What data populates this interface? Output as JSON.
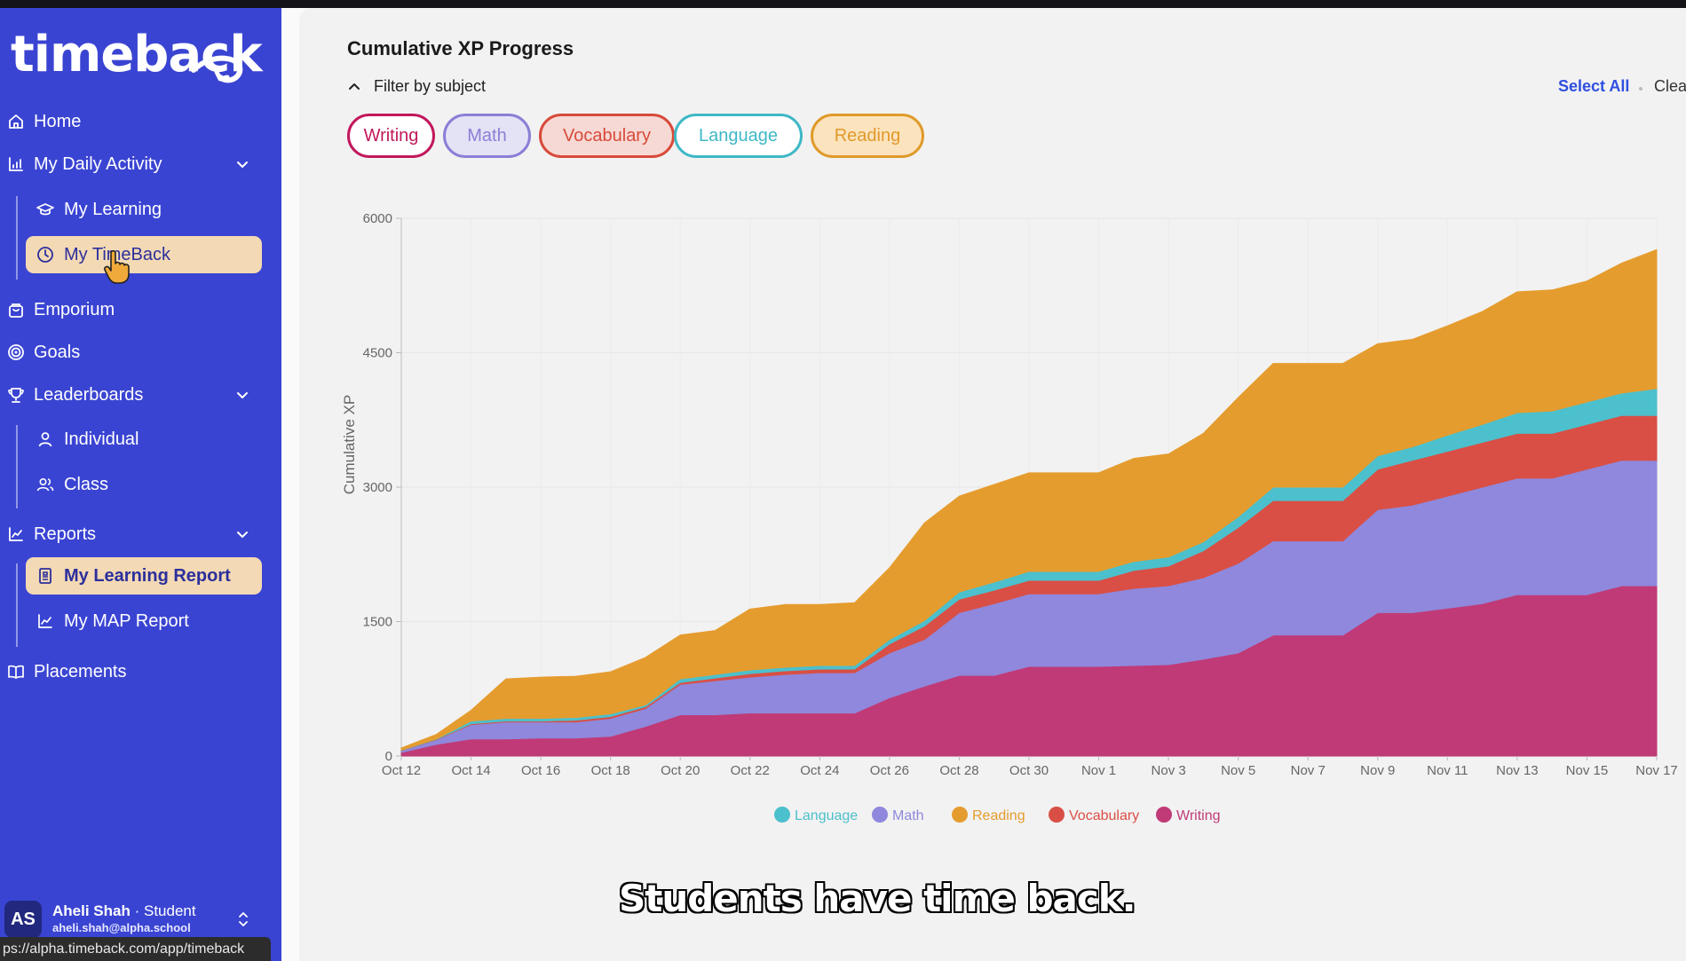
{
  "app": {
    "logo_text": "timeback"
  },
  "sidebar": {
    "items": [
      {
        "label": "Home",
        "icon": "home-icon"
      },
      {
        "label": "My Daily Activity",
        "icon": "activity-chart-icon",
        "expanded": true,
        "children": [
          {
            "label": "My Learning",
            "icon": "graduation-cap-icon"
          },
          {
            "label": "My TimeBack",
            "icon": "clock-icon",
            "active": true
          }
        ]
      },
      {
        "label": "Emporium",
        "icon": "shopping-bag-icon"
      },
      {
        "label": "Goals",
        "icon": "target-icon"
      },
      {
        "label": "Leaderboards",
        "icon": "trophy-icon",
        "expanded": true,
        "children": [
          {
            "label": "Individual",
            "icon": "user-icon"
          },
          {
            "label": "Class",
            "icon": "users-icon"
          }
        ]
      },
      {
        "label": "Reports",
        "icon": "reports-chart-icon",
        "expanded": true,
        "children": [
          {
            "label": "My Learning Report",
            "icon": "report-icon",
            "active": true
          },
          {
            "label": "My MAP Report",
            "icon": "line-chart-icon"
          }
        ]
      },
      {
        "label": "Placements",
        "icon": "book-open-icon"
      }
    ],
    "user": {
      "initials": "AS",
      "name": "Aheli Shah",
      "role": "· Student",
      "email": "aheli.shah@alpha.school"
    }
  },
  "status_url": "ps://alpha.timeback.com/app/timeback",
  "main": {
    "title": "Cumulative XP Progress",
    "filter_label": "Filter by subject",
    "select_all": "Select All",
    "clear": "Clear",
    "subject_pills": [
      {
        "label": "Writing",
        "color": "#c2185b",
        "bg": "#ffffff"
      },
      {
        "label": "Math",
        "color": "#8a7fd6",
        "bg": "#e4e2f5"
      },
      {
        "label": "Vocabulary",
        "color": "#d84a3a",
        "bg": "#f6d9d4"
      },
      {
        "label": "Language",
        "color": "#3fb8c6",
        "bg": "#ffffff"
      },
      {
        "label": "Reading",
        "color": "#e09a2a",
        "bg": "#fbe3bd"
      }
    ]
  },
  "caption": "Students have time back.",
  "chart_data": {
    "type": "area",
    "stacked": true,
    "title": "Cumulative XP Progress",
    "ylabel": "Cumulative XP",
    "xlabel": "",
    "ylim": [
      0,
      6000
    ],
    "yticks": [
      "0",
      "1500",
      "3000",
      "4500",
      "6000"
    ],
    "xticks": [
      "Oct 12",
      "Oct 14",
      "Oct 16",
      "Oct 18",
      "Oct 20",
      "Oct 22",
      "Oct 24",
      "Oct 26",
      "Oct 28",
      "Oct 30",
      "Nov 1",
      "Nov 3",
      "Nov 5",
      "Nov 7",
      "Nov 9",
      "Nov 11",
      "Nov 13",
      "Nov 15",
      "Nov 17"
    ],
    "x": [
      "Oct 12",
      "Oct 13",
      "Oct 14",
      "Oct 15",
      "Oct 16",
      "Oct 17",
      "Oct 18",
      "Oct 19",
      "Oct 20",
      "Oct 21",
      "Oct 22",
      "Oct 23",
      "Oct 24",
      "Oct 25",
      "Oct 26",
      "Oct 27",
      "Oct 28",
      "Oct 29",
      "Oct 30",
      "Oct 31",
      "Nov 1",
      "Nov 2",
      "Nov 3",
      "Nov 4",
      "Nov 5",
      "Nov 6",
      "Nov 7",
      "Nov 8",
      "Nov 9",
      "Nov 10",
      "Nov 11",
      "Nov 12",
      "Nov 13",
      "Nov 14",
      "Nov 15",
      "Nov 16",
      "Nov 17"
    ],
    "legend_position": "bottom",
    "series": [
      {
        "name": "Writing",
        "color": "#c03a77",
        "values": [
          40,
          130,
          190,
          190,
          200,
          200,
          220,
          330,
          460,
          460,
          480,
          480,
          480,
          480,
          650,
          780,
          900,
          900,
          1000,
          1000,
          1000,
          1010,
          1020,
          1080,
          1150,
          1350,
          1350,
          1350,
          1600,
          1600,
          1650,
          1700,
          1800,
          1800,
          1800,
          1900,
          1900
        ]
      },
      {
        "name": "Math",
        "color": "#8f88dc",
        "values": [
          20,
          50,
          160,
          190,
          180,
          180,
          200,
          200,
          340,
          380,
          400,
          430,
          450,
          450,
          500,
          520,
          700,
          800,
          810,
          810,
          810,
          860,
          880,
          910,
          1000,
          1050,
          1050,
          1050,
          1150,
          1200,
          1250,
          1300,
          1300,
          1300,
          1400,
          1400,
          1400
        ]
      },
      {
        "name": "Vocabulary",
        "color": "#d94f45",
        "values": [
          3,
          5,
          10,
          10,
          10,
          20,
          20,
          20,
          20,
          30,
          40,
          40,
          40,
          40,
          100,
          150,
          150,
          150,
          150,
          150,
          150,
          200,
          220,
          300,
          400,
          450,
          450,
          450,
          450,
          500,
          500,
          500,
          500,
          500,
          500,
          500,
          500
        ]
      },
      {
        "name": "Language",
        "color": "#4cc0cc",
        "values": [
          2,
          5,
          30,
          30,
          30,
          30,
          30,
          20,
          40,
          40,
          40,
          40,
          40,
          40,
          50,
          60,
          80,
          90,
          100,
          100,
          100,
          100,
          100,
          100,
          120,
          150,
          150,
          150,
          150,
          150,
          180,
          200,
          230,
          250,
          250,
          250,
          300
        ]
      },
      {
        "name": "Reading",
        "color": "#e59c2e",
        "values": [
          25,
          50,
          120,
          440,
          460,
          460,
          470,
          530,
          490,
          490,
          680,
          700,
          680,
          700,
          800,
          1090,
          1070,
          1090,
          1100,
          1100,
          1100,
          1150,
          1150,
          1210,
          1330,
          1380,
          1380,
          1380,
          1250,
          1200,
          1220,
          1260,
          1350,
          1350,
          1350,
          1450,
          1550
        ]
      }
    ]
  }
}
